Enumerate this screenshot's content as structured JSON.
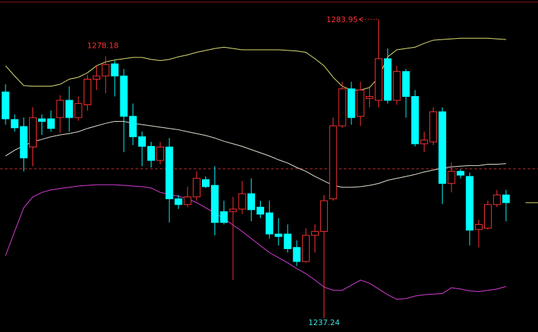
{
  "chart_data": {
    "type": "candlestick",
    "ylim": [
      1235.08,
      1286.98
    ],
    "up_color": "#ff3232",
    "down_color": "#00ffff",
    "open": [
      1272.6,
      1268.3,
      1267.2,
      1264.0,
      1268.4,
      1268.4,
      1268.6,
      1271.3,
      1268.6,
      1270.6,
      1274.6,
      1275.1,
      1277.0,
      1275.1,
      1268.8,
      1265.6,
      1264.1,
      1261.9,
      1264.0,
      1255.9,
      1255.0,
      1256.2,
      1258.9,
      1258.0,
      1253.9,
      1253.9,
      1254.3,
      1256.7,
      1254.6,
      1253.7,
      1250.4,
      1250.4,
      1248.3,
      1246.1,
      1250.2,
      1250.8,
      1255.9,
      1267.3,
      1273.1,
      1268.8,
      1271.6,
      1271.3,
      1277.8,
      1271.3,
      1275.8,
      1271.9,
      1264.5,
      1264.8,
      1269.5,
      1258.3,
      1260.2,
      1259.4,
      1251.1,
      1251.3,
      1255.0,
      1256.5
    ],
    "high": [
      1273.8,
      1269.1,
      1268.6,
      1270.2,
      1269.1,
      1269.7,
      1272.1,
      1273.5,
      1271.9,
      1275.3,
      1276.7,
      1278.18,
      1277.5,
      1276.2,
      1270.8,
      1266.4,
      1264.8,
      1264.8,
      1265.4,
      1256.5,
      1257.8,
      1260.2,
      1259.4,
      1261.0,
      1255.6,
      1256.2,
      1258.7,
      1259.1,
      1255.6,
      1255.6,
      1252.9,
      1251.9,
      1249.4,
      1251.3,
      1251.9,
      1256.5,
      1268.6,
      1274.2,
      1274.2,
      1274.2,
      1273.5,
      1283.95,
      1279.4,
      1276.7,
      1276.2,
      1272.9,
      1266.4,
      1270.2,
      1270.2,
      1261.6,
      1260.5,
      1260.0,
      1252.6,
      1255.6,
      1257.3,
      1257.3
    ],
    "low": [
      1267.5,
      1266.4,
      1260.2,
      1261.0,
      1265.9,
      1266.4,
      1266.2,
      1266.4,
      1268.1,
      1269.7,
      1272.9,
      1272.4,
      1271.9,
      1263.2,
      1264.3,
      1261.0,
      1260.8,
      1261.3,
      1252.2,
      1254.3,
      1254.6,
      1255.6,
      1257.6,
      1250.2,
      1251.9,
      1243.2,
      1253.5,
      1252.4,
      1252.9,
      1249.7,
      1248.6,
      1247.5,
      1245.4,
      1245.9,
      1247.5,
      1237.24,
      1255.6,
      1267.0,
      1267.5,
      1267.3,
      1270.2,
      1270.2,
      1270.8,
      1270.6,
      1268.6,
      1264.1,
      1263.2,
      1264.3,
      1255.1,
      1256.9,
      1259.1,
      1248.6,
      1248.3,
      1251.1,
      1254.6,
      1252.4
    ],
    "close": [
      1268.4,
      1267.0,
      1262.3,
      1268.6,
      1268.0,
      1266.9,
      1271.3,
      1268.6,
      1270.8,
      1274.6,
      1275.1,
      1276.9,
      1275.1,
      1268.8,
      1265.6,
      1264.1,
      1261.9,
      1264.0,
      1255.9,
      1255.0,
      1256.2,
      1259.1,
      1257.8,
      1252.2,
      1252.2,
      1254.3,
      1256.7,
      1254.2,
      1253.5,
      1250.4,
      1250.0,
      1248.1,
      1246.1,
      1250.2,
      1250.8,
      1255.6,
      1267.3,
      1273.1,
      1268.6,
      1272.9,
      1271.9,
      1277.8,
      1271.3,
      1275.8,
      1271.9,
      1264.5,
      1265.1,
      1269.5,
      1258.3,
      1260.2,
      1259.6,
      1251.0,
      1251.9,
      1255.0,
      1256.5,
      1255.3
    ],
    "bands": [
      {
        "color": "#e6e67a",
        "values": [
          1276.7,
          1275.1,
          1273.6,
          1273.5,
          1273.5,
          1273.5,
          1273.8,
          1274.6,
          1274.9,
          1275.6,
          1276.7,
          1277.3,
          1277.6,
          1277.8,
          1278.0,
          1278.0,
          1277.7,
          1277.5,
          1277.7,
          1278.1,
          1278.4,
          1278.8,
          1279.1,
          1279.4,
          1279.6,
          1279.4,
          1279.2,
          1279.2,
          1279.2,
          1279.2,
          1279.2,
          1279.1,
          1279.0,
          1278.8,
          1277.8,
          1276.7,
          1274.9,
          1273.5,
          1272.9,
          1272.9,
          1273.3,
          1274.9,
          1278.1,
          1279.2,
          1279.4,
          1279.6,
          1280.2,
          1280.7,
          1280.8,
          1280.9,
          1281.0,
          1281.0,
          1281.0,
          1281.0,
          1280.9,
          1280.8
        ]
      },
      {
        "color": "#e8e8d8",
        "values": [
          1262.6,
          1263.5,
          1264.2,
          1264.8,
          1265.2,
          1265.6,
          1265.9,
          1266.1,
          1266.4,
          1266.9,
          1267.3,
          1267.7,
          1268.0,
          1268.0,
          1267.7,
          1267.5,
          1267.3,
          1267.1,
          1266.9,
          1266.7,
          1266.4,
          1266.1,
          1265.8,
          1265.4,
          1264.9,
          1264.5,
          1264.1,
          1263.6,
          1263.1,
          1262.6,
          1262.0,
          1261.5,
          1260.8,
          1260.2,
          1259.4,
          1258.7,
          1258.0,
          1257.7,
          1257.7,
          1257.8,
          1258.0,
          1258.3,
          1258.8,
          1259.1,
          1259.4,
          1259.7,
          1260.1,
          1260.4,
          1260.7,
          1260.9,
          1261.0,
          1261.1,
          1261.1,
          1261.3,
          1261.3,
          1261.4
        ]
      },
      {
        "color": "#e040e0",
        "values": [
          1247.0,
          1250.8,
          1254.5,
          1256.2,
          1256.9,
          1257.3,
          1257.5,
          1257.7,
          1257.9,
          1258.0,
          1258.1,
          1258.1,
          1258.1,
          1258.0,
          1257.9,
          1257.8,
          1257.6,
          1256.9,
          1256.6,
          1256.3,
          1255.9,
          1255.3,
          1254.5,
          1253.7,
          1252.8,
          1251.8,
          1250.8,
          1249.7,
          1248.6,
          1247.5,
          1246.7,
          1245.9,
          1245.0,
          1244.2,
          1243.2,
          1242.1,
          1241.6,
          1241.6,
          1242.4,
          1243.2,
          1242.7,
          1241.8,
          1240.9,
          1240.2,
          1240.3,
          1240.7,
          1240.9,
          1241.0,
          1241.1,
          1242.0,
          1241.8,
          1241.5,
          1241.4,
          1241.6,
          1241.8,
          1242.2
        ]
      }
    ],
    "reference_line": {
      "value": 1260.6,
      "color": "#c03030",
      "dashed": true
    },
    "last_price_color": "#e6e67a",
    "annotations": [
      {
        "index": 11,
        "value": 1278.18,
        "color": "#ff3232",
        "position": "above"
      },
      {
        "index": 41,
        "value": 1283.95,
        "color": "#ff3232",
        "position": "left"
      },
      {
        "index": 35,
        "value": 1237.24,
        "color": "#40e0e0",
        "position": "below"
      }
    ]
  }
}
